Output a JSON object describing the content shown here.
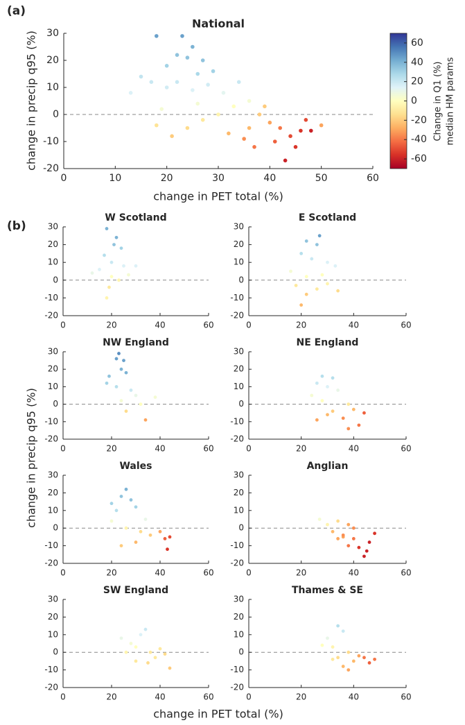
{
  "panel_labels": [
    "(a)",
    "(b)"
  ],
  "shared_axes": {
    "xlabel": "change in PET total (%)",
    "ylabel": "change in precip q95 (%)"
  },
  "colorbar": {
    "label": [
      "Change in Q1 (%)",
      "median HM params"
    ],
    "lim": [
      -70,
      70
    ],
    "ticks": [
      -60,
      -40,
      -20,
      0,
      20,
      40,
      60
    ],
    "colormap": [
      "#a50026",
      "#d73027",
      "#f46d43",
      "#fdae61",
      "#fee090",
      "#ffffbf",
      "#e0f3f8",
      "#abd9e9",
      "#74add1",
      "#4575b4",
      "#313695"
    ]
  },
  "chart_data": [
    {
      "type": "scatter",
      "title": "National",
      "xlabel": "change in PET total (%)",
      "ylabel": "change in precip q95 (%)",
      "x": [
        18,
        23,
        25,
        22,
        27,
        20,
        24,
        26,
        29,
        17,
        15,
        13,
        20,
        22,
        25,
        28,
        31,
        34,
        36,
        33,
        30,
        27,
        24,
        21,
        18,
        38,
        40,
        42,
        44,
        46,
        45,
        43,
        41,
        48,
        47,
        39,
        36,
        35,
        32,
        19,
        26,
        37,
        50
      ],
      "y": [
        29,
        29,
        25,
        22,
        20,
        18,
        21,
        15,
        16,
        12,
        14,
        8,
        10,
        12,
        9,
        11,
        8,
        12,
        5,
        3,
        0,
        -2,
        -5,
        -8,
        -4,
        0,
        -3,
        -5,
        -8,
        -6,
        -12,
        -17,
        -10,
        -6,
        -2,
        3,
        -5,
        -9,
        -7,
        2,
        4,
        -12,
        -4
      ],
      "color_values": [
        45,
        45,
        40,
        35,
        35,
        30,
        35,
        28,
        30,
        20,
        22,
        15,
        18,
        20,
        15,
        18,
        12,
        20,
        5,
        0,
        -5,
        -10,
        -15,
        -20,
        -12,
        -20,
        -30,
        -40,
        -50,
        -55,
        -55,
        -60,
        -45,
        -60,
        -50,
        -20,
        -25,
        -35,
        -25,
        5,
        5,
        -40,
        -30
      ],
      "xlim": [
        0,
        60
      ],
      "ylim": [
        -20,
        30
      ],
      "xticks": [
        0,
        10,
        20,
        30,
        40,
        50,
        60
      ],
      "yticks": [
        -20,
        -10,
        0,
        10,
        20,
        30
      ],
      "reference_line": 0
    },
    {
      "type": "scatter",
      "title": "W Scotland",
      "x": [
        18,
        22,
        21,
        24,
        17,
        20,
        15,
        25,
        30,
        20,
        23,
        19,
        18,
        12,
        27
      ],
      "y": [
        29,
        24,
        20,
        18,
        14,
        10,
        6,
        8,
        8,
        2,
        0,
        -4,
        -10,
        4,
        3
      ],
      "color_values": [
        40,
        40,
        35,
        30,
        25,
        20,
        15,
        15,
        15,
        0,
        -5,
        -10,
        -5,
        10,
        5
      ],
      "xlim": [
        0,
        60
      ],
      "ylim": [
        -20,
        30
      ],
      "xticks": [
        0,
        20,
        40,
        60
      ],
      "yticks": [
        -20,
        -10,
        0,
        10,
        20,
        30
      ],
      "reference_line": 0
    },
    {
      "type": "scatter",
      "title": "E Scotland",
      "x": [
        27,
        22,
        26,
        20,
        24,
        30,
        33,
        16,
        22,
        28,
        18,
        22,
        20,
        26,
        34,
        30
      ],
      "y": [
        25,
        22,
        20,
        15,
        12,
        10,
        8,
        5,
        2,
        3,
        -3,
        -8,
        -14,
        -5,
        -6,
        -2
      ],
      "color_values": [
        45,
        35,
        35,
        25,
        20,
        15,
        15,
        5,
        0,
        0,
        -10,
        -20,
        -25,
        -10,
        -15,
        -5
      ],
      "xlim": [
        0,
        60
      ],
      "ylim": [
        -20,
        30
      ],
      "xticks": [
        0,
        20,
        40,
        60
      ],
      "yticks": [
        -20,
        -10,
        0,
        10,
        20,
        30
      ],
      "reference_line": 0
    },
    {
      "type": "scatter",
      "title": "NW England",
      "x": [
        23,
        22,
        25,
        24,
        19,
        26,
        18,
        22,
        28,
        30,
        24,
        32,
        38,
        26,
        34
      ],
      "y": [
        29,
        26,
        25,
        20,
        16,
        18,
        12,
        10,
        8,
        5,
        2,
        0,
        4,
        -4,
        -9
      ],
      "color_values": [
        50,
        45,
        45,
        40,
        35,
        40,
        30,
        25,
        20,
        10,
        5,
        0,
        5,
        -15,
        -30
      ],
      "xlim": [
        0,
        60
      ],
      "ylim": [
        -20,
        30
      ],
      "xticks": [
        0,
        20,
        40,
        60
      ],
      "yticks": [
        -20,
        -10,
        0,
        10,
        20,
        30
      ],
      "reference_line": 0
    },
    {
      "type": "scatter",
      "title": "NE England",
      "x": [
        28,
        32,
        26,
        30,
        24,
        34,
        28,
        38,
        32,
        26,
        40,
        36,
        42,
        44,
        30,
        38
      ],
      "y": [
        16,
        15,
        12,
        10,
        5,
        8,
        2,
        0,
        -4,
        -9,
        -3,
        -8,
        -12,
        -5,
        -6,
        -14
      ],
      "color_values": [
        25,
        25,
        20,
        15,
        5,
        10,
        0,
        -10,
        -20,
        -30,
        -25,
        -35,
        -40,
        -45,
        -25,
        -35
      ],
      "xlim": [
        0,
        60
      ],
      "ylim": [
        -20,
        30
      ],
      "xticks": [
        0,
        20,
        40,
        60
      ],
      "yticks": [
        -20,
        -10,
        0,
        10,
        20,
        30
      ],
      "reference_line": 0
    },
    {
      "type": "scatter",
      "title": "Wales",
      "x": [
        26,
        24,
        28,
        20,
        22,
        30,
        34,
        20,
        26,
        32,
        36,
        40,
        42,
        44,
        43,
        24,
        30
      ],
      "y": [
        22,
        18,
        16,
        14,
        10,
        12,
        5,
        4,
        0,
        -2,
        -4,
        -2,
        -6,
        -5,
        -12,
        -10,
        -8
      ],
      "color_values": [
        40,
        35,
        35,
        30,
        25,
        30,
        10,
        5,
        -5,
        -15,
        -20,
        -30,
        -45,
        -50,
        -55,
        -20,
        -25
      ],
      "xlim": [
        0,
        60
      ],
      "ylim": [
        -20,
        30
      ],
      "xticks": [
        0,
        20,
        40,
        60
      ],
      "yticks": [
        -20,
        -10,
        0,
        10,
        20,
        30
      ],
      "reference_line": 0
    },
    {
      "type": "scatter",
      "title": "Anglian",
      "x": [
        27,
        30,
        34,
        32,
        36,
        38,
        40,
        34,
        38,
        42,
        44,
        46,
        48,
        45,
        40,
        36
      ],
      "y": [
        5,
        2,
        4,
        -2,
        -5,
        2,
        0,
        -6,
        -10,
        -11,
        -16,
        -8,
        -3,
        -13,
        -6,
        -4
      ],
      "color_values": [
        5,
        -5,
        -15,
        -25,
        -30,
        -30,
        -35,
        -30,
        -40,
        -55,
        -60,
        -60,
        -55,
        -60,
        -40,
        -35
      ],
      "xlim": [
        0,
        60
      ],
      "ylim": [
        -20,
        30
      ],
      "xticks": [
        0,
        20,
        40,
        60
      ],
      "yticks": [
        -20,
        -10,
        0,
        10,
        20,
        30
      ],
      "reference_line": 0
    },
    {
      "type": "scatter",
      "title": "SW England",
      "x": [
        24,
        28,
        32,
        34,
        30,
        26,
        36,
        38,
        42,
        44,
        30,
        40,
        35
      ],
      "y": [
        8,
        5,
        10,
        13,
        3,
        0,
        0,
        -3,
        -1,
        -9,
        -5,
        2,
        -6
      ],
      "color_values": [
        10,
        5,
        15,
        20,
        0,
        -5,
        -10,
        -10,
        -15,
        -20,
        -10,
        -10,
        -15
      ],
      "xlim": [
        0,
        60
      ],
      "ylim": [
        -20,
        30
      ],
      "xticks": [
        0,
        20,
        40,
        60
      ],
      "yticks": [
        -20,
        -10,
        0,
        10,
        20,
        30
      ],
      "reference_line": 0
    },
    {
      "type": "scatter",
      "title": "Thames & SE",
      "x": [
        34,
        36,
        30,
        28,
        32,
        38,
        34,
        36,
        40,
        42,
        44,
        46,
        48,
        38,
        32
      ],
      "y": [
        15,
        12,
        8,
        4,
        3,
        0,
        -3,
        -8,
        -5,
        -2,
        -3,
        -6,
        -4,
        -10,
        -4
      ],
      "color_values": [
        25,
        20,
        10,
        0,
        -5,
        -15,
        -15,
        -25,
        -25,
        -30,
        -40,
        -45,
        -40,
        -30,
        -10
      ],
      "xlim": [
        0,
        60
      ],
      "ylim": [
        -20,
        30
      ],
      "xticks": [
        0,
        20,
        40,
        60
      ],
      "yticks": [
        -20,
        -10,
        0,
        10,
        20,
        30
      ],
      "reference_line": 0
    }
  ]
}
